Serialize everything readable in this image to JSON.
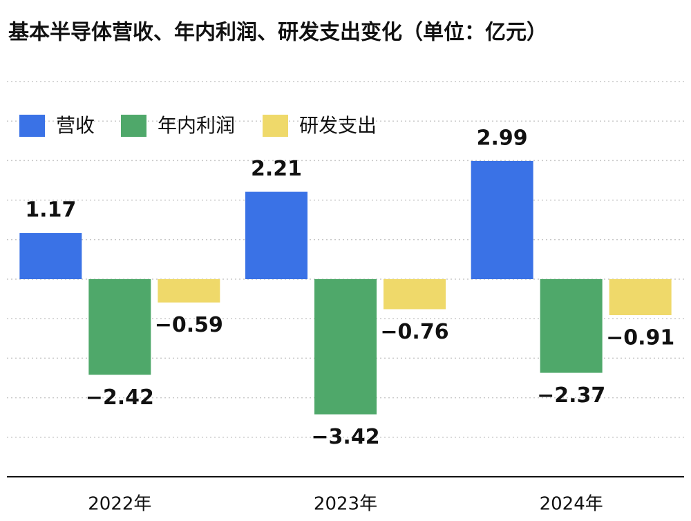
{
  "chart_data": {
    "type": "bar",
    "title": "基本半导体营收、年内利润、研发支出变化（单位：亿元）",
    "categories": [
      "2022年",
      "2023年",
      "2024年"
    ],
    "series": [
      {
        "name": "营收",
        "color": "#3a72e6",
        "values": [
          1.17,
          2.21,
          2.99
        ],
        "value_labels": [
          "1.17",
          "2.21",
          "2.99"
        ]
      },
      {
        "name": "年内利润",
        "color": "#4fa86a",
        "values": [
          -2.42,
          -3.42,
          -2.37
        ],
        "value_labels": [
          "−2.42",
          "−3.42",
          "−2.37"
        ]
      },
      {
        "name": "研发支出",
        "color": "#efd96a",
        "values": [
          -0.59,
          -0.76,
          -0.91
        ],
        "value_labels": [
          "−0.59",
          "−0.76",
          "−0.91"
        ]
      }
    ],
    "ylim": [
      -5,
      5
    ],
    "yticks": [
      -4,
      -3,
      -2,
      -1,
      0,
      1,
      2,
      3,
      4,
      5
    ],
    "grid": true,
    "legend": "top-left"
  }
}
